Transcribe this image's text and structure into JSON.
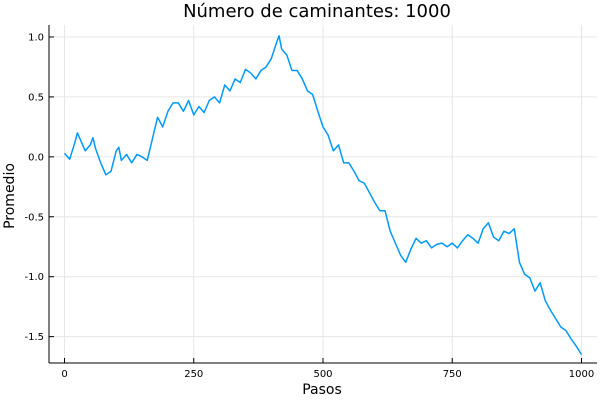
{
  "chart_data": {
    "type": "line",
    "title": "Número de caminantes: 1000",
    "xlabel": "Pasos",
    "ylabel": "Promedio",
    "xlim": [
      -30,
      1030
    ],
    "ylim": [
      -1.72,
      1.1
    ],
    "grid": true,
    "legend": "none",
    "x_ticks": [
      {
        "value": 0,
        "label": "0"
      },
      {
        "value": 250,
        "label": "250"
      },
      {
        "value": 500,
        "label": "500"
      },
      {
        "value": 750,
        "label": "750"
      },
      {
        "value": 1000,
        "label": "1000"
      }
    ],
    "y_ticks": [
      {
        "value": 1.0,
        "label": "1.0"
      },
      {
        "value": 0.5,
        "label": "0.5"
      },
      {
        "value": 0.0,
        "label": "0.0"
      },
      {
        "value": -0.5,
        "label": "-0.5"
      },
      {
        "value": -1.0,
        "label": "-1.0"
      },
      {
        "value": -1.5,
        "label": "-1.5"
      }
    ],
    "series": [
      {
        "color": "#009af9",
        "x": [
          0,
          10,
          20,
          25,
          30,
          40,
          50,
          55,
          60,
          70,
          80,
          90,
          100,
          105,
          110,
          120,
          130,
          140,
          150,
          160,
          170,
          180,
          190,
          200,
          210,
          220,
          230,
          240,
          250,
          260,
          270,
          280,
          290,
          300,
          310,
          320,
          330,
          340,
          350,
          360,
          370,
          380,
          390,
          400,
          410,
          415,
          420,
          430,
          440,
          450,
          460,
          470,
          480,
          490,
          500,
          510,
          520,
          530,
          540,
          550,
          560,
          570,
          580,
          590,
          600,
          610,
          620,
          630,
          640,
          650,
          660,
          670,
          680,
          690,
          700,
          710,
          720,
          730,
          740,
          750,
          760,
          770,
          780,
          790,
          800,
          810,
          820,
          830,
          840,
          850,
          860,
          870,
          880,
          890,
          900,
          910,
          920,
          930,
          940,
          950,
          960,
          970,
          980,
          990,
          1000
        ],
        "y": [
          0.03,
          -0.02,
          0.12,
          0.2,
          0.15,
          0.05,
          0.1,
          0.16,
          0.07,
          -0.05,
          -0.15,
          -0.12,
          0.05,
          0.08,
          -0.03,
          0.02,
          -0.05,
          0.02,
          0.0,
          -0.03,
          0.15,
          0.33,
          0.25,
          0.38,
          0.45,
          0.45,
          0.38,
          0.47,
          0.35,
          0.42,
          0.37,
          0.47,
          0.5,
          0.45,
          0.6,
          0.55,
          0.65,
          0.62,
          0.73,
          0.7,
          0.65,
          0.72,
          0.75,
          0.82,
          0.95,
          1.01,
          0.9,
          0.85,
          0.72,
          0.72,
          0.65,
          0.55,
          0.52,
          0.38,
          0.25,
          0.18,
          0.05,
          0.1,
          -0.05,
          -0.05,
          -0.12,
          -0.2,
          -0.22,
          -0.3,
          -0.38,
          -0.45,
          -0.45,
          -0.62,
          -0.72,
          -0.82,
          -0.88,
          -0.77,
          -0.68,
          -0.72,
          -0.7,
          -0.76,
          -0.73,
          -0.72,
          -0.75,
          -0.72,
          -0.76,
          -0.7,
          -0.65,
          -0.68,
          -0.72,
          -0.6,
          -0.55,
          -0.67,
          -0.7,
          -0.62,
          -0.64,
          -0.6,
          -0.88,
          -0.98,
          -1.01,
          -1.12,
          -1.05,
          -1.2,
          -1.28,
          -1.35,
          -1.42,
          -1.45,
          -1.52,
          -1.58,
          -1.65
        ]
      }
    ]
  }
}
